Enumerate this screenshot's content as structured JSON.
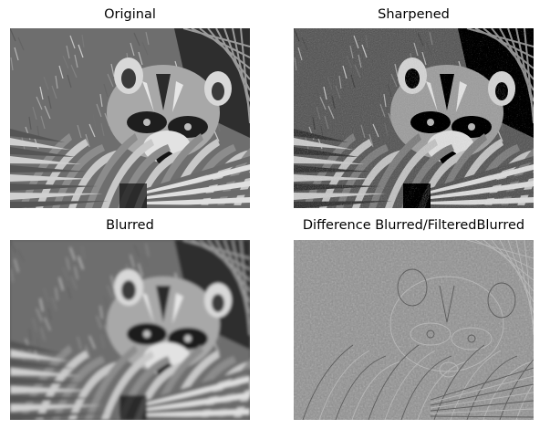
{
  "panels": [
    {
      "title": "Original"
    },
    {
      "title": "Sharpened"
    },
    {
      "title": "Blurred"
    },
    {
      "title": "Difference Blurred/FilteredBlurred"
    }
  ],
  "colors": {
    "background": "#ffffff",
    "difference_gray": "#8a8a8a"
  }
}
